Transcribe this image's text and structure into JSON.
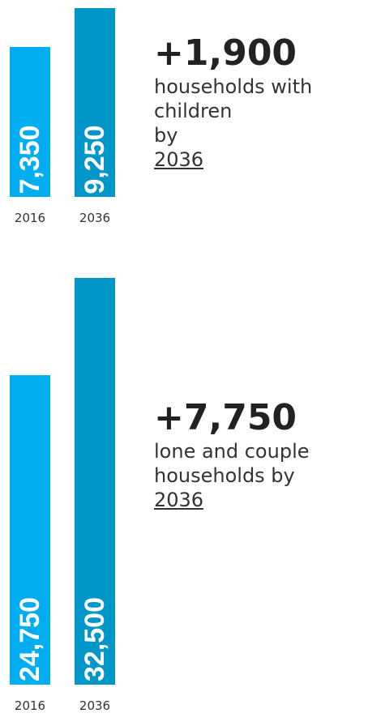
{
  "colors": {
    "bar_2016": "#00aeef",
    "bar_2036": "#0096c7"
  },
  "chart_data": [
    {
      "type": "bar",
      "categories": [
        "2016",
        "2036"
      ],
      "values": [
        7350,
        9250
      ],
      "value_labels": [
        "7,350",
        "9,250"
      ],
      "ylim": [
        0,
        32500
      ],
      "title": "",
      "xlabel": "",
      "ylabel": "",
      "annotation": {
        "value": "+1,900",
        "text_lines": [
          "households with",
          "children",
          "by"
        ],
        "year": "2036"
      }
    },
    {
      "type": "bar",
      "categories": [
        "2016",
        "2036"
      ],
      "values": [
        24750,
        32500
      ],
      "value_labels": [
        "24,750",
        "32,500"
      ],
      "ylim": [
        0,
        32500
      ],
      "title": "",
      "xlabel": "",
      "ylabel": "",
      "annotation": {
        "value": "+7,750",
        "text_lines": [
          "lone and couple",
          "households by"
        ],
        "year": "2036"
      }
    }
  ]
}
